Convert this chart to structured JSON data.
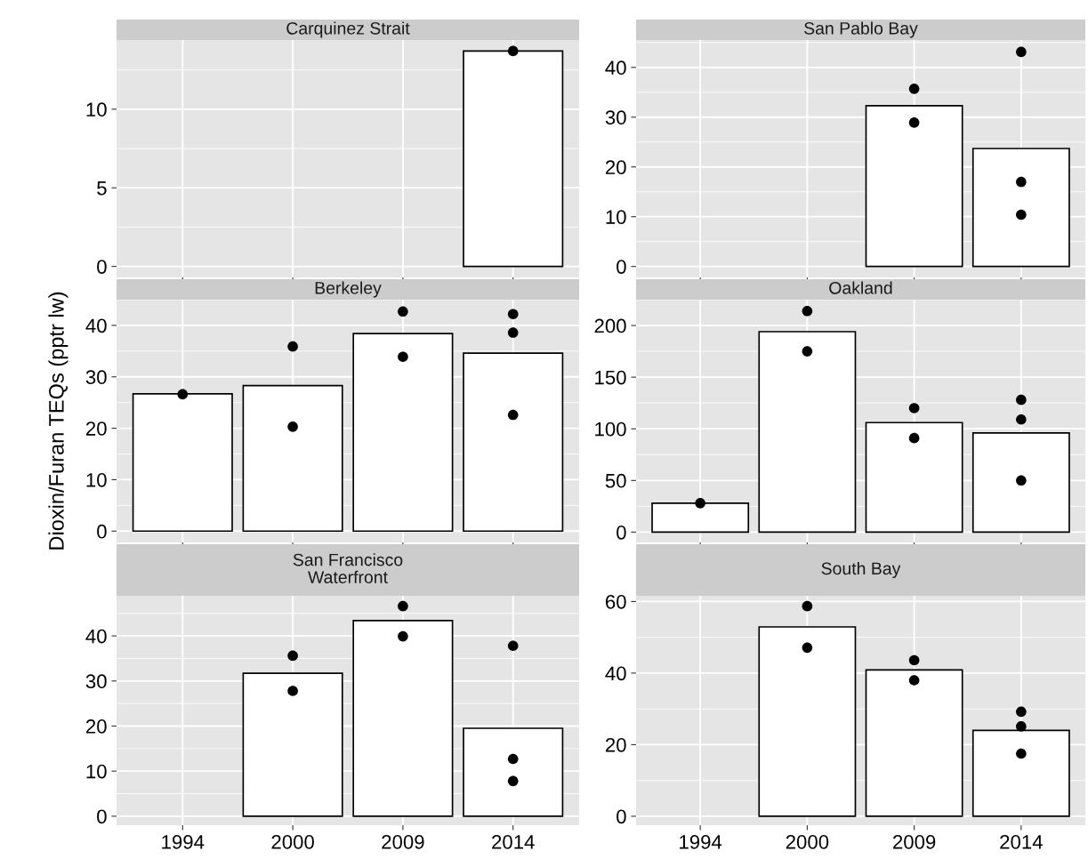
{
  "chart_data": [
    {
      "type": "bar",
      "title": "Carquinez Strait",
      "categories": [
        "1994",
        "2000",
        "2009",
        "2014"
      ],
      "ylim": [
        -0.7,
        14.4
      ],
      "yticks": [
        0,
        5,
        10
      ],
      "grid": true,
      "tick_labels": "y",
      "series": [
        {
          "color": "#ffffff",
          "values": [
            null,
            null,
            null,
            13.7
          ]
        },
        {
          "type": "scatter",
          "color": "#000000",
          "marker": "circle",
          "values": [
            null,
            null,
            null,
            13.7
          ]
        }
      ]
    },
    {
      "type": "bar",
      "title": "San Pablo Bay",
      "categories": [
        "1994",
        "2000",
        "2009",
        "2014"
      ],
      "ylim": [
        -2.2,
        45.5
      ],
      "yticks": [
        0,
        10,
        20,
        30,
        40
      ],
      "grid": true,
      "tick_labels": "y",
      "series": [
        {
          "color": "#ffffff",
          "values": [
            null,
            null,
            32.3,
            23.7
          ]
        },
        {
          "type": "scatter",
          "color": "#000000",
          "marker": "circle",
          "values": [
            null,
            null,
            35.7,
            43.1
          ]
        },
        {
          "type": "scatter",
          "color": "#000000",
          "marker": "circle",
          "values": [
            null,
            null,
            28.9,
            17.0
          ]
        },
        {
          "type": "scatter",
          "color": "#000000",
          "marker": "circle",
          "values": [
            null,
            null,
            null,
            10.4
          ]
        }
      ]
    },
    {
      "type": "bar",
      "title": "Berkeley",
      "ylabel": "Dioxin/Furan TEQs (pptr lw)",
      "categories": [
        "1994",
        "2000",
        "2009",
        "2014"
      ],
      "ylim": [
        -2.2,
        45.0
      ],
      "yticks": [
        0,
        10,
        20,
        30,
        40
      ],
      "grid": true,
      "tick_labels": "y",
      "series": [
        {
          "color": "#ffffff",
          "values": [
            26.7,
            28.3,
            38.4,
            34.6
          ]
        },
        {
          "type": "scatter",
          "color": "#000000",
          "marker": "circle",
          "values": [
            26.6,
            35.9,
            42.7,
            42.2
          ]
        },
        {
          "type": "scatter",
          "color": "#000000",
          "marker": "circle",
          "values": [
            null,
            20.3,
            33.9,
            38.6
          ]
        },
        {
          "type": "scatter",
          "color": "#000000",
          "marker": "circle",
          "values": [
            null,
            null,
            null,
            22.6
          ]
        }
      ]
    },
    {
      "type": "bar",
      "title": "Oakland",
      "categories": [
        "1994",
        "2000",
        "2009",
        "2014"
      ],
      "ylim": [
        -10,
        225
      ],
      "yticks": [
        0,
        50,
        100,
        150,
        200
      ],
      "grid": true,
      "tick_labels": "y",
      "series": [
        {
          "color": "#ffffff",
          "values": [
            28,
            194,
            106,
            96
          ]
        },
        {
          "type": "scatter",
          "color": "#000000",
          "marker": "circle",
          "values": [
            28,
            214,
            120,
            128
          ]
        },
        {
          "type": "scatter",
          "color": "#000000",
          "marker": "circle",
          "values": [
            null,
            175,
            91,
            109
          ]
        },
        {
          "type": "scatter",
          "color": "#000000",
          "marker": "circle",
          "values": [
            null,
            null,
            null,
            50
          ]
        }
      ]
    },
    {
      "type": "bar",
      "title": "San Francisco\nWaterfront",
      "categories": [
        "1994",
        "2000",
        "2009",
        "2014"
      ],
      "ylim": [
        -2.0,
        48.9
      ],
      "yticks": [
        0,
        10,
        20,
        30,
        40
      ],
      "grid": true,
      "series": [
        {
          "color": "#ffffff",
          "values": [
            null,
            31.7,
            43.4,
            19.5
          ]
        },
        {
          "type": "scatter",
          "color": "#000000",
          "marker": "circle",
          "values": [
            null,
            35.6,
            46.6,
            37.8
          ]
        },
        {
          "type": "scatter",
          "color": "#000000",
          "marker": "circle",
          "values": [
            null,
            27.8,
            39.9,
            12.7
          ]
        },
        {
          "type": "scatter",
          "color": "#000000",
          "marker": "circle",
          "values": [
            null,
            null,
            null,
            7.8
          ]
        }
      ]
    },
    {
      "type": "bar",
      "title": "South Bay",
      "categories": [
        "1994",
        "2000",
        "2009",
        "2014"
      ],
      "ylim": [
        -2.5,
        61.6
      ],
      "yticks": [
        0,
        20,
        40,
        60
      ],
      "grid": true,
      "series": [
        {
          "color": "#ffffff",
          "values": [
            null,
            52.9,
            40.9,
            24.0
          ]
        },
        {
          "type": "scatter",
          "color": "#000000",
          "marker": "circle",
          "values": [
            null,
            58.7,
            43.6,
            29.2
          ]
        },
        {
          "type": "scatter",
          "color": "#000000",
          "marker": "circle",
          "values": [
            null,
            47.1,
            38.0,
            25.1
          ]
        },
        {
          "type": "scatter",
          "color": "#000000",
          "marker": "circle",
          "values": [
            null,
            null,
            null,
            17.5
          ]
        }
      ]
    }
  ]
}
